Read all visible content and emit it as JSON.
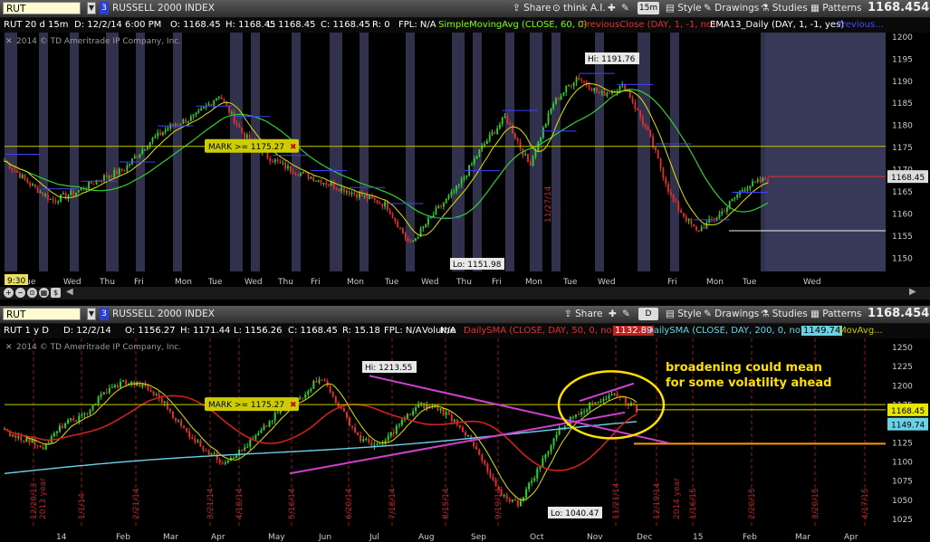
{
  "top": {
    "symbol": "RUT",
    "aggregation_number": "3",
    "instrument": "RUSSELL 2000 INDEX",
    "share_label": "Share",
    "thinkai_label": "think A.I.",
    "timeframe": "15m",
    "style_label": "Style",
    "drawings_label": "Drawings",
    "studies_label": "Studies",
    "patterns_label": "Patterns",
    "last_price": "1168.4549",
    "info": {
      "symbol_period": "RUT 20 d 15m",
      "date": "D: 12/2/14 6:00 PM",
      "open": "O: 1168.45",
      "high": "H: 1168.45",
      "low": "L: 1168.45",
      "close": "C: 1168.45",
      "range": "R: 0",
      "fpl": "FPL: N/A",
      "sma": "SimpleMovingAvg (CLOSE, 60, 0)",
      "prev": "PreviousClose (DAY, 1, -1, no)",
      "ema": "EMA13_Daily (DAY, 1, -1, yes)",
      "prev2": "Previous..."
    },
    "copyright": "2014 © TD Ameritrade IP Company, Inc.",
    "hi_label": "Hi: 1191.76",
    "lo_label": "Lo: 1151.98",
    "mark_label": "MARK >= 1175.27",
    "price_tag": "1168.45",
    "y_ticks": [
      "1200",
      "1195",
      "1190",
      "1185",
      "1180",
      "1175",
      "1170",
      "1165",
      "1160",
      "1155",
      "1150"
    ],
    "x_labels": [
      "Tue",
      "Wed",
      "Thu",
      "Fri",
      "Mon",
      "Tue",
      "Wed",
      "Thu",
      "Fri",
      "Mon",
      "Tue",
      "Wed",
      "Thu",
      "Fri",
      "Mon",
      "Tue",
      "Wed",
      "Fri",
      "Mon",
      "Tue",
      "Wed"
    ],
    "session_time": "9:30",
    "vertical_date": "11/27/14"
  },
  "bottom": {
    "symbol": "RUT",
    "aggregation_number": "3",
    "instrument": "RUSSELL 2000 INDEX",
    "share_label": "Share",
    "timeframe": "D",
    "style_label": "Style",
    "drawings_label": "Drawings",
    "studies_label": "Studies",
    "patterns_label": "Patterns",
    "last_price": "1168.4549",
    "info": {
      "symbol_period": "RUT 1 y D",
      "date": "D: 12/2/14",
      "open": "O: 1156.27",
      "high": "H: 1171.44",
      "low": "L: 1156.26",
      "close": "C: 1168.45",
      "range": "R: 15.18",
      "fpl": "FPL: N/A",
      "volume": "Volume",
      "volume_val": "N/A",
      "sma50": "DailySMA (CLOSE, DAY, 50, 0, no)",
      "sma50_val": "1132.89",
      "sma200": "DailySMA (CLOSE, DAY, 200, 0, no)",
      "sma200_val": "1149.74",
      "movavg": "MovAvg..."
    },
    "copyright": "2014 © TD Ameritrade IP Company, Inc.",
    "hi_label": "Hi: 1213.55",
    "lo_label": "Lo: 1040.47",
    "mark_label": "MARK >= 1175.27",
    "annotation_line1": "broadening could mean",
    "annotation_line2": "for some volatility ahead",
    "price_tag_1": "1168.45",
    "price_tag_2": "1149.74",
    "y_ticks": [
      "1250",
      "1225",
      "1200",
      "1175",
      "1150",
      "1125",
      "1100",
      "1075",
      "1050",
      "1025"
    ],
    "x_labels": [
      "14",
      "Feb",
      "Mar",
      "Apr",
      "May",
      "Jun",
      "Jul",
      "Aug",
      "Sep",
      "Oct",
      "Nov",
      "Dec",
      "15",
      "Feb",
      "Mar",
      "Apr"
    ],
    "vertical_dates": [
      "12/20/13",
      "1/1/14",
      "2/21/14",
      "3/21/14",
      "4/18/14",
      "5/16/14",
      "6/20/14",
      "7/18/14",
      "8/15/14",
      "9/19/14",
      "11/21/14",
      "12/19/14",
      "1/16/15",
      "2/20/15",
      "3/20/15",
      "4/17/15"
    ],
    "year_labels": [
      "2013 year",
      "2014 year"
    ]
  },
  "colors": {
    "candle_up": "#2fd12f",
    "candle_down": "#e23030",
    "mark_line": "#c8c800",
    "session_shade": "#3a3a5a",
    "sma50": "#d02020",
    "sma200": "#69d2e7",
    "trendline": "#d040d0",
    "annotation": "#ffe000"
  },
  "chart_data": [
    {
      "type": "candlestick",
      "title": "RUT 20 d 15m",
      "ylim": [
        1147,
        1201
      ],
      "hi": 1191.76,
      "lo": 1151.98,
      "mark": 1175.27,
      "last": 1168.45,
      "key_points": [
        1172,
        1167,
        1163,
        1165,
        1168,
        1170,
        1176,
        1180,
        1182,
        1187,
        1178,
        1173,
        1170,
        1168,
        1166,
        1164,
        1162,
        1153,
        1160,
        1166,
        1175,
        1182,
        1171,
        1185,
        1191,
        1187,
        1189,
        1178,
        1163,
        1156,
        1160,
        1166,
        1168
      ]
    },
    {
      "type": "candlestick",
      "title": "RUT 1 y D",
      "ylim": [
        1013,
        1262
      ],
      "hi": 1213.55,
      "lo": 1040.47,
      "mark": 1175.27,
      "sma200_last": 1149.74,
      "sma50_last": 1132.89,
      "last": 1168.45,
      "key_points": [
        1140,
        1130,
        1120,
        1150,
        1160,
        1190,
        1205,
        1200,
        1180,
        1145,
        1120,
        1100,
        1115,
        1140,
        1170,
        1185,
        1213,
        1170,
        1130,
        1120,
        1150,
        1175,
        1170,
        1150,
        1110,
        1060,
        1045,
        1090,
        1140,
        1165,
        1180,
        1190,
        1168
      ]
    }
  ]
}
